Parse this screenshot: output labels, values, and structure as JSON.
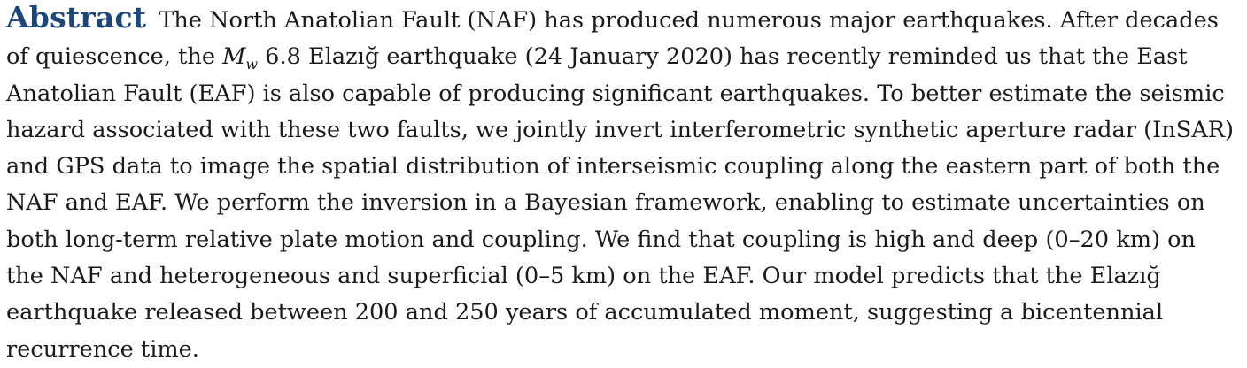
{
  "abstract": {
    "heading": "Abstract",
    "lines": [
      "The North Anatolian Fault (NAF) has produced numerous major earthquakes. After decades",
      null,
      "Anatolian Fault (EAF) is also capable of producing significant earthquakes. To better estimate the seismic",
      "hazard associated with these two faults, we jointly invert interferometric synthetic aperture radar (InSAR)",
      "and GPS data to image the spatial distribution of interseismic coupling along the eastern part of both the",
      "NAF and EAF. We perform the inversion in a Bayesian framework, enabling to estimate uncertainties on",
      "both long-term relative plate motion and coupling. We find that coupling is high and deep (0–20 km) on",
      "the NAF and heterogeneous and superficial (0–5 km) on the EAF. Our model predicts that the Elazığ",
      "earthquake released between 200 and 250 years of accumulated moment, suggesting a bicentennial",
      "recurrence time."
    ],
    "line2": {
      "before": "of quiescence, the ",
      "magnitude_symbol": "M",
      "magnitude_subscript": "w",
      "after": " 6.8 Elazığ earthquake (24 January 2020) has recently reminded us that the East"
    }
  }
}
